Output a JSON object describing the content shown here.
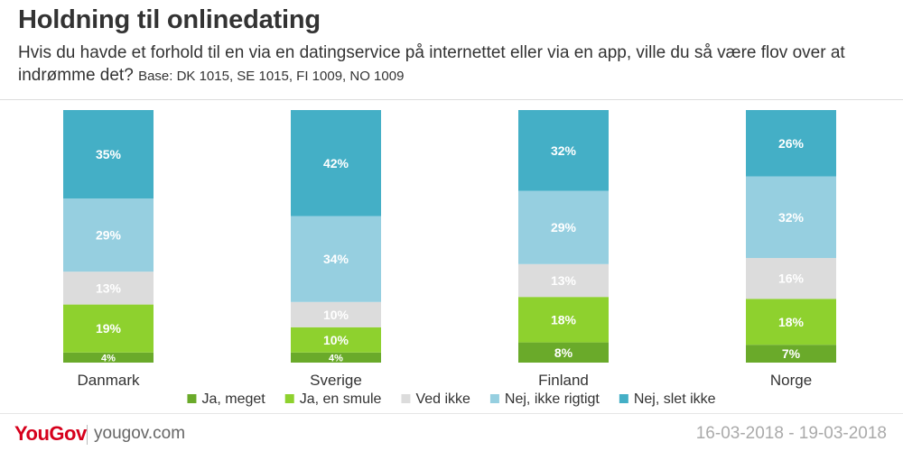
{
  "header": {
    "title": "Holdning til onlinedating",
    "subtitle": "Hvis du havde et forhold til en via en datingservice på internettet eller via en app, ville du så være flov over at indrømme det?",
    "base": "Base: DK 1015, SE 1015, FI 1009, NO 1009"
  },
  "footer": {
    "logo": "YouGov",
    "site": "yougov.com",
    "dates": "16-03-2018 - 19-03-2018"
  },
  "chart_data": {
    "type": "bar",
    "stacked": true,
    "percent": true,
    "categories": [
      "Danmark",
      "Sverige",
      "Finland",
      "Norge"
    ],
    "series": [
      {
        "name": "Ja, meget",
        "color": "#6aaa2a",
        "values": [
          4,
          4,
          8,
          7
        ]
      },
      {
        "name": "Ja, en smule",
        "color": "#8ed12e",
        "values": [
          19,
          10,
          18,
          18
        ]
      },
      {
        "name": "Ved ikke",
        "color": "#dcdcdc",
        "values": [
          13,
          10,
          13,
          16
        ]
      },
      {
        "name": "Nej, ikke rigtigt",
        "color": "#96cfe0",
        "values": [
          29,
          34,
          29,
          32
        ]
      },
      {
        "name": "Nej, slet ikke",
        "color": "#44afc6",
        "values": [
          35,
          42,
          32,
          26
        ]
      }
    ],
    "legend_position": "bottom",
    "grid": false
  }
}
